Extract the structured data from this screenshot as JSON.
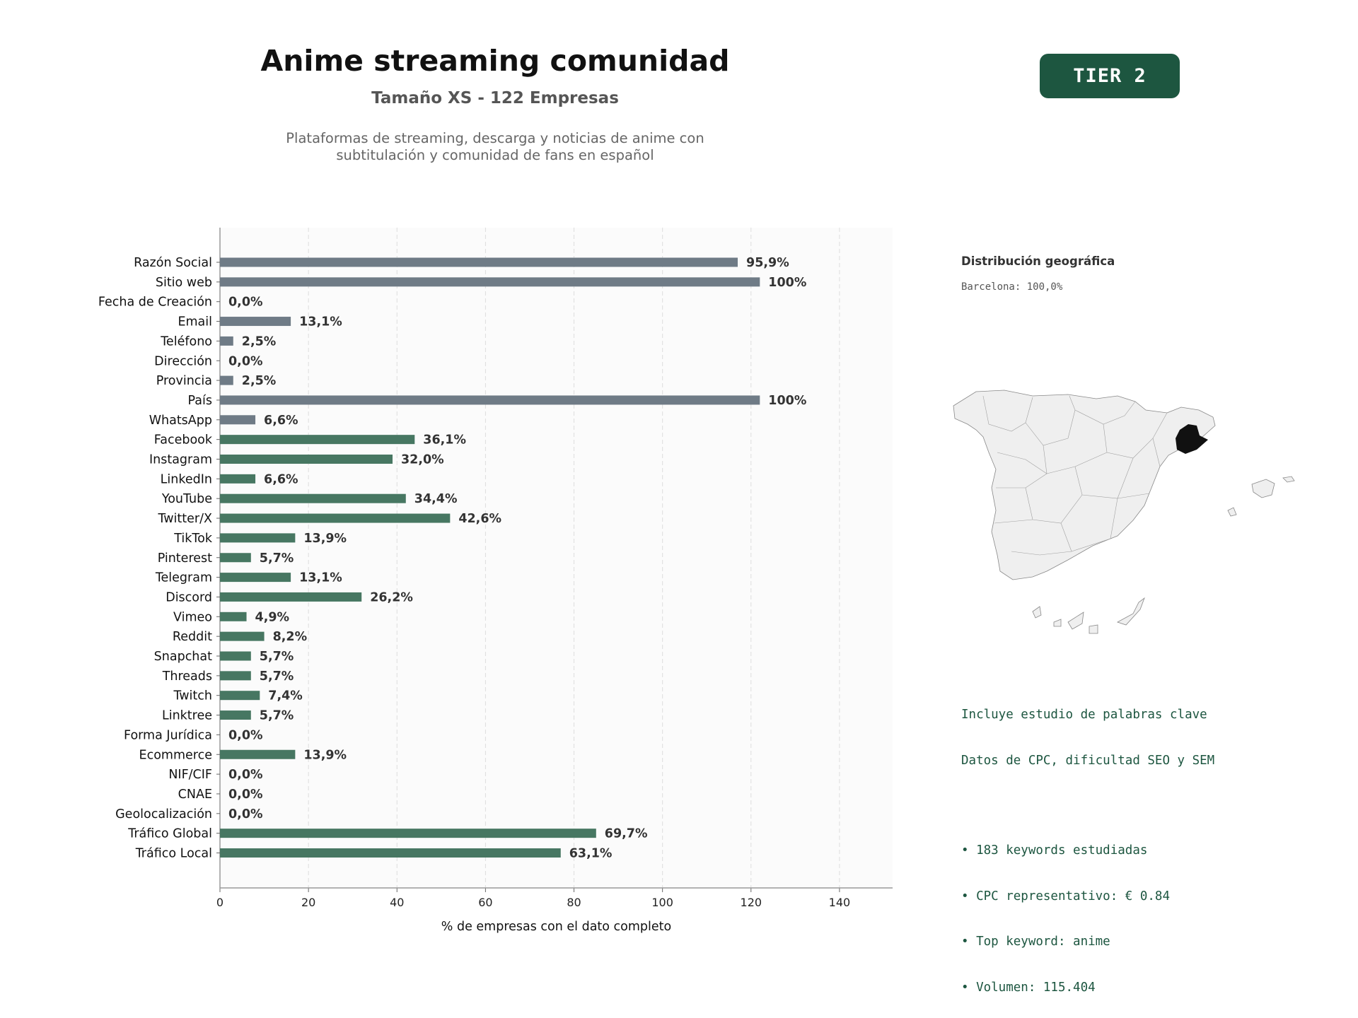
{
  "header": {
    "title": "Anime streaming comunidad",
    "subtitle": "Tamaño XS - 122 Empresas",
    "description_line1": "Plataformas de streaming, descarga y noticias de anime con",
    "description_line2": "subtitulación y comunidad de fans en español",
    "tier_badge": "TIER 2"
  },
  "colors": {
    "basic_bar": "#6f7b86",
    "social_bar": "#477762",
    "tier_bg": "#1d5640",
    "keywords_text": "#1d5640",
    "highlight_region": "#111111"
  },
  "chart_data": {
    "type": "bar",
    "orientation": "horizontal",
    "xlabel": "% de empresas con el dato completo",
    "xlim": [
      0,
      152
    ],
    "xticks": [
      0,
      20,
      40,
      60,
      80,
      100,
      120,
      140
    ],
    "grid": true,
    "note": "Bar lengths are drawn on the axis scale; bars labelled 100% extend to ~122 on the axis.",
    "categories": [
      "Razón Social",
      "Sitio web",
      "Fecha de Creación",
      "Email",
      "Teléfono",
      "Dirección",
      "Provincia",
      "País",
      "WhatsApp",
      "Facebook",
      "Instagram",
      "LinkedIn",
      "YouTube",
      "Twitter/X",
      "TikTok",
      "Pinterest",
      "Telegram",
      "Discord",
      "Vimeo",
      "Reddit",
      "Snapchat",
      "Threads",
      "Twitch",
      "Linktree",
      "Forma Jurídica",
      "Ecommerce",
      "NIF/CIF",
      "CNAE",
      "Geolocalización",
      "Tráfico Global",
      "Tráfico Local"
    ],
    "bar_lengths": [
      117,
      122,
      0,
      16,
      3,
      0,
      3,
      122,
      8,
      44,
      39,
      8,
      42,
      52,
      17,
      7,
      16,
      32,
      6,
      10,
      7,
      7,
      9,
      7,
      0,
      17,
      0,
      0,
      0,
      85,
      77
    ],
    "labels": [
      "95,9%",
      "100%",
      "0,0%",
      "13,1%",
      "2,5%",
      "0,0%",
      "2,5%",
      "100%",
      "6,6%",
      "36,1%",
      "32,0%",
      "6,6%",
      "34,4%",
      "42,6%",
      "13,9%",
      "5,7%",
      "13,1%",
      "26,2%",
      "4,9%",
      "8,2%",
      "5,7%",
      "5,7%",
      "7,4%",
      "5,7%",
      "0,0%",
      "13,9%",
      "0,0%",
      "0,0%",
      "0,0%",
      "69,7%",
      "63,1%"
    ],
    "groups": [
      "basic",
      "basic",
      "basic",
      "basic",
      "basic",
      "basic",
      "basic",
      "basic",
      "basic",
      "social",
      "social",
      "social",
      "social",
      "social",
      "social",
      "social",
      "social",
      "social",
      "social",
      "social",
      "social",
      "social",
      "social",
      "social",
      "social",
      "social",
      "social",
      "social",
      "social",
      "social",
      "social"
    ]
  },
  "geo": {
    "title": "Distribución geográfica",
    "line": "Barcelona: 100,0%"
  },
  "keywords": {
    "line1": "Incluye estudio de palabras clave",
    "line2": "Datos de CPC, dificultad SEO y SEM",
    "bullet1": "• 183 keywords estudiadas",
    "bullet2": "• CPC representativo: € 0.84",
    "bullet3": "• Top keyword: anime",
    "bullet4": "• Volumen: 115.404"
  }
}
